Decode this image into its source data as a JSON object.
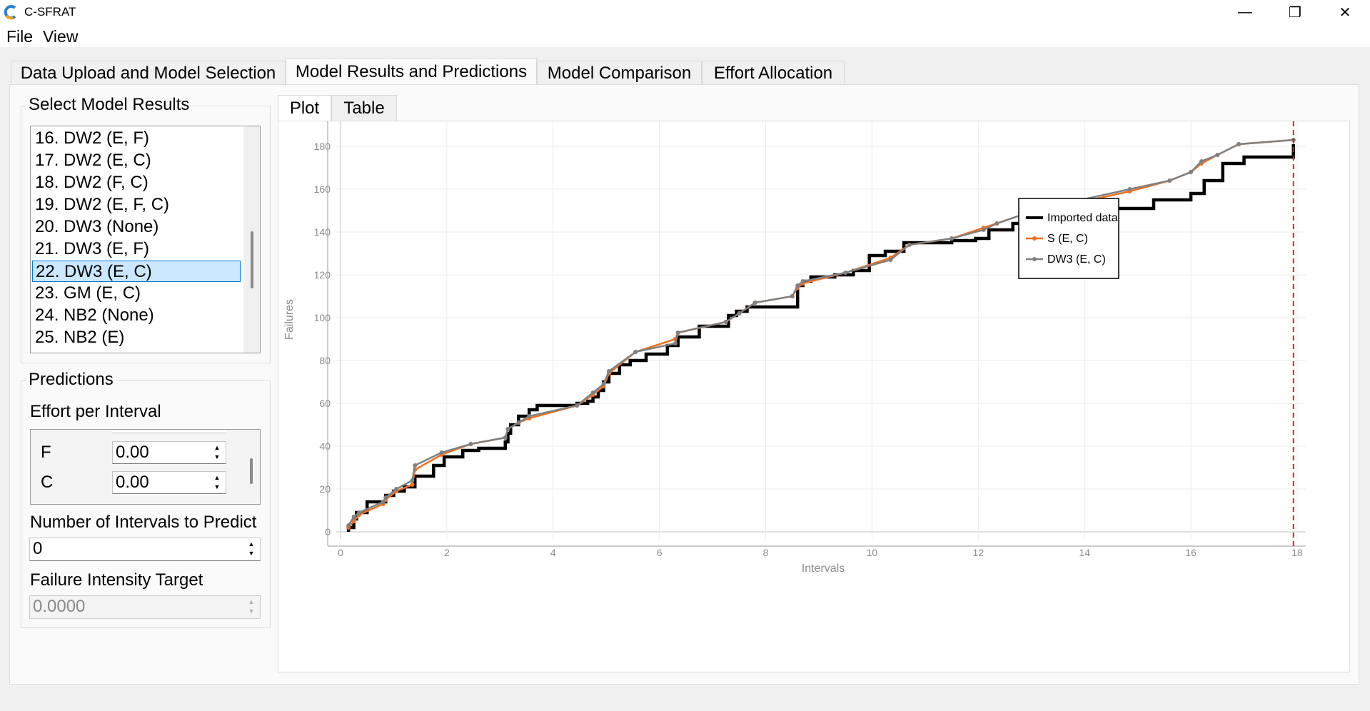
{
  "window": {
    "title": "C-SFRAT",
    "minimize_glyph": "—",
    "maximize_glyph": "❐",
    "close_glyph": "✕"
  },
  "menu": [
    "File",
    "View"
  ],
  "tabs": [
    {
      "label": "Data Upload and Model Selection"
    },
    {
      "label": "Model Results and Predictions"
    },
    {
      "label": "Model Comparison"
    },
    {
      "label": "Effort Allocation"
    }
  ],
  "select_results": {
    "title": "Select Model Results",
    "items": [
      "16. DW2 (E, F)",
      "17. DW2 (E, C)",
      "18. DW2 (F, C)",
      "19. DW2 (E, F, C)",
      "20. DW3 (None)",
      "21. DW3 (E, F)",
      "22. DW3 (E, C)",
      "23. GM (E, C)",
      "24. NB2 (None)",
      "25. NB2 (E)"
    ],
    "selected_index": 6
  },
  "predictions": {
    "title": "Predictions",
    "effort_label": "Effort per Interval",
    "effort_rows": [
      {
        "name": "F",
        "value": "0.00"
      },
      {
        "name": "C",
        "value": "0.00"
      }
    ],
    "intervals_label": "Number of Intervals to Predict",
    "intervals_value": "0",
    "intensity_label": "Failure Intensity Target",
    "intensity_value": "0.0000"
  },
  "plot_tabs": [
    "Plot",
    "Table"
  ],
  "chart_data": {
    "type": "line",
    "xlabel": "Intervals",
    "ylabel": "Failures",
    "xlim": [
      0,
      18
    ],
    "ylim": [
      0,
      185
    ],
    "xticks": [
      0,
      2,
      4,
      6,
      8,
      10,
      12,
      14,
      16,
      18
    ],
    "yticks": [
      0,
      20,
      40,
      60,
      80,
      100,
      120,
      140,
      160,
      180
    ],
    "grid": true,
    "legend_placement": "right",
    "vline_x": 17.93,
    "vline_color": "#e02020",
    "series": [
      {
        "name": "Imported data",
        "color": "#000000",
        "step": true,
        "x": [
          0.15,
          0.25,
          0.3,
          0.5,
          0.85,
          1.0,
          1.2,
          1.4,
          1.75,
          1.95,
          2.3,
          2.6,
          3.1,
          3.15,
          3.2,
          3.35,
          3.55,
          3.7,
          4.45,
          4.65,
          4.75,
          4.85,
          4.95,
          5.05,
          5.25,
          5.45,
          5.75,
          6.15,
          6.35,
          6.75,
          7.3,
          7.45,
          7.65,
          8.6,
          8.7,
          8.85,
          9.3,
          9.65,
          9.95,
          10.25,
          10.6,
          11.5,
          11.95,
          12.2,
          12.65,
          13.0,
          13.7,
          14.6,
          15.3,
          16.0,
          16.25,
          16.6,
          17.0,
          17.93
        ],
        "y": [
          2,
          6,
          9,
          14,
          17,
          19,
          21,
          26,
          31,
          35,
          38,
          39,
          42,
          46,
          50,
          54,
          57,
          59,
          60,
          61,
          63,
          66,
          70,
          74,
          78,
          80,
          83,
          87,
          91,
          96,
          101,
          103,
          105,
          115,
          117,
          119,
          120,
          122,
          129,
          131,
          135,
          136,
          137,
          141,
          144,
          146,
          149,
          151,
          155,
          158,
          164,
          172,
          175,
          181
        ]
      },
      {
        "name": "S (E, C)",
        "color": "#f07020",
        "x": [
          0.15,
          0.25,
          0.35,
          0.8,
          0.85,
          1.05,
          1.35,
          1.4,
          1.9,
          2.45,
          3.1,
          3.15,
          3.35,
          3.55,
          4.45,
          4.75,
          4.95,
          5.05,
          5.55,
          6.3,
          6.35,
          7.25,
          7.5,
          7.8,
          8.5,
          8.6,
          8.7,
          9.5,
          10.35,
          10.7,
          11.5,
          12.1,
          12.35,
          13.05,
          13.75,
          14.85,
          15.6,
          16.0,
          16.2,
          16.5,
          16.9,
          17.93
        ],
        "y": [
          2,
          5,
          8,
          13,
          15,
          19,
          22,
          29,
          36,
          41,
          44,
          48,
          51,
          53,
          59,
          64,
          68,
          74,
          84,
          90,
          93,
          98,
          102,
          107,
          110,
          114,
          116,
          121,
          128,
          134,
          137,
          142,
          144,
          150,
          153,
          159,
          164,
          168,
          172,
          176,
          181,
          183
        ]
      },
      {
        "name": "DW3 (E, C)",
        "color": "#808080",
        "x": [
          0.15,
          0.25,
          0.35,
          0.8,
          0.85,
          1.05,
          1.35,
          1.4,
          1.9,
          2.45,
          3.1,
          3.15,
          3.35,
          3.55,
          4.45,
          4.75,
          4.95,
          5.05,
          5.55,
          6.3,
          6.35,
          7.25,
          7.5,
          7.8,
          8.5,
          8.6,
          8.7,
          9.5,
          10.35,
          10.7,
          11.5,
          12.1,
          12.35,
          13.05,
          13.75,
          14.85,
          15.6,
          16.0,
          16.2,
          16.5,
          16.9,
          17.93
        ],
        "y": [
          3,
          7,
          9,
          14,
          16,
          20,
          24,
          31,
          37,
          41,
          44,
          48,
          51,
          54,
          59,
          65,
          69,
          75,
          84,
          88,
          93,
          98,
          102,
          107,
          110,
          115,
          117,
          121,
          127,
          134,
          137,
          141,
          144,
          150,
          154,
          160,
          164,
          168,
          173,
          176,
          181,
          183
        ]
      }
    ]
  }
}
